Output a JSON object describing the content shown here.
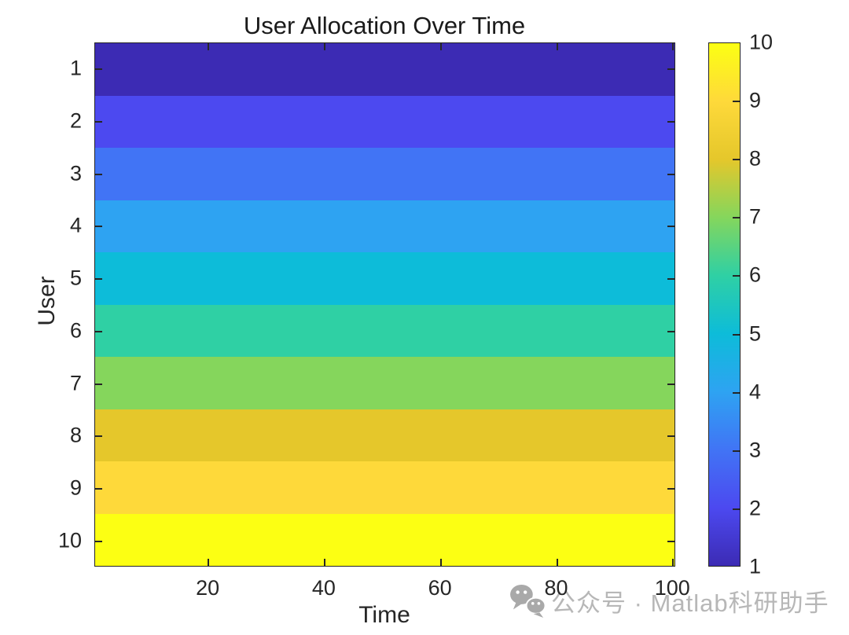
{
  "figure": {
    "background": "#ffffff",
    "watermark": {
      "icon": "wechat-icon",
      "icon_color": "#a9a9a9",
      "text": "公众号 · Matlab科研助手",
      "text_color": "#b7b7b7"
    }
  },
  "chart_data": {
    "type": "heatmap",
    "title": "User Allocation Over Time",
    "xlabel": "Time",
    "ylabel": "User",
    "x_range": [
      0.5,
      100.5
    ],
    "x_ticks": [
      20,
      40,
      60,
      80,
      100
    ],
    "users": [
      1,
      2,
      3,
      4,
      5,
      6,
      7,
      8,
      9,
      10
    ],
    "row_values": [
      1,
      2,
      3,
      4,
      5,
      6,
      7,
      8,
      9,
      10
    ],
    "row_values_note": "each user row holds a constant value equal to its user index for all time steps 1-100",
    "band_colors": [
      "#3C2BB4",
      "#4C49F0",
      "#4174F5",
      "#2EA3F2",
      "#0DBCD9",
      "#2FD0A4",
      "#85D65C",
      "#E5C72B",
      "#FED93A",
      "#FCFF13"
    ],
    "colormap_name": "parula",
    "colorbar": {
      "min": 1,
      "max": 10,
      "ticks": [
        1,
        2,
        3,
        4,
        5,
        6,
        7,
        8,
        9,
        10
      ],
      "position": "right"
    },
    "axis_color": "#262626",
    "grid": false,
    "legend": null
  }
}
